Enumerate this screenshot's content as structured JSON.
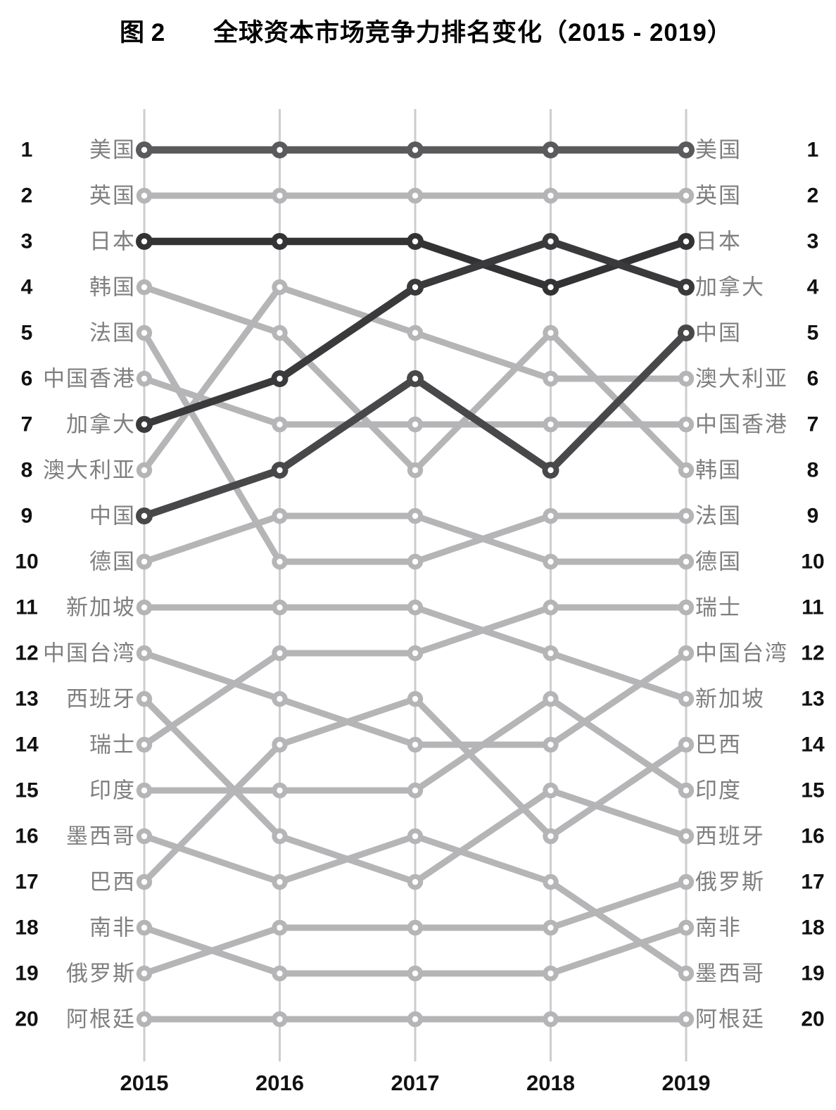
{
  "title": {
    "figure_label": "图 2",
    "text": "全球资本市场竞争力排名变化（2015 - 2019）"
  },
  "chart_data": {
    "type": "line",
    "subtype": "bump-ranking",
    "title": "全球资本市场竞争力排名变化（2015 - 2019）",
    "x": [
      "2015",
      "2016",
      "2017",
      "2018",
      "2019"
    ],
    "rank_axis": [
      1,
      2,
      3,
      4,
      5,
      6,
      7,
      8,
      9,
      10,
      11,
      12,
      13,
      14,
      15,
      16,
      17,
      18,
      19,
      20
    ],
    "ylim": [
      1,
      20
    ],
    "grid": "vertical-only",
    "legend_position": "none",
    "colors": {
      "default_line": "#b5b5b7",
      "grid": "#cdcdcf",
      "label_text": "#7f7f81",
      "rank_number": "#111111",
      "year_label": "#111111",
      "dot_hole": "#ffffff"
    },
    "series": [
      {
        "id": "usa",
        "name": "美国",
        "ranks": [
          1,
          1,
          1,
          1,
          1
        ],
        "color": "#5a5a5c",
        "emphasis": true
      },
      {
        "id": "uk",
        "name": "英国",
        "ranks": [
          2,
          2,
          2,
          2,
          2
        ],
        "color": "#b5b5b7",
        "emphasis": false
      },
      {
        "id": "japan",
        "name": "日本",
        "ranks": [
          3,
          3,
          3,
          4,
          3
        ],
        "color": "#333335",
        "emphasis": true
      },
      {
        "id": "korea",
        "name": "韩国",
        "ranks": [
          4,
          5,
          8,
          5,
          8
        ],
        "color": "#b5b5b7",
        "emphasis": false
      },
      {
        "id": "france",
        "name": "法国",
        "ranks": [
          5,
          10,
          10,
          9,
          9
        ],
        "color": "#b5b5b7",
        "emphasis": false
      },
      {
        "id": "hong-kong",
        "name": "中国香港",
        "ranks": [
          6,
          7,
          7,
          7,
          7
        ],
        "color": "#b5b5b7",
        "emphasis": false
      },
      {
        "id": "canada",
        "name": "加拿大",
        "ranks": [
          7,
          6,
          4,
          3,
          4
        ],
        "color": "#3a3a3c",
        "emphasis": true
      },
      {
        "id": "australia",
        "name": "澳大利亚",
        "ranks": [
          8,
          4,
          5,
          6,
          6
        ],
        "color": "#b5b5b7",
        "emphasis": false
      },
      {
        "id": "china",
        "name": "中国",
        "ranks": [
          9,
          8,
          6,
          8,
          5
        ],
        "color": "#48484a",
        "emphasis": true
      },
      {
        "id": "germany",
        "name": "德国",
        "ranks": [
          10,
          9,
          9,
          10,
          10
        ],
        "color": "#b5b5b7",
        "emphasis": false
      },
      {
        "id": "singapore",
        "name": "新加坡",
        "ranks": [
          11,
          11,
          11,
          12,
          13
        ],
        "color": "#b5b5b7",
        "emphasis": false
      },
      {
        "id": "taiwan",
        "name": "中国台湾",
        "ranks": [
          12,
          13,
          14,
          14,
          12
        ],
        "color": "#b5b5b7",
        "emphasis": false
      },
      {
        "id": "spain",
        "name": "西班牙",
        "ranks": [
          13,
          16,
          17,
          15,
          16
        ],
        "color": "#b5b5b7",
        "emphasis": false
      },
      {
        "id": "switzerland",
        "name": "瑞士",
        "ranks": [
          14,
          12,
          12,
          11,
          11
        ],
        "color": "#b5b5b7",
        "emphasis": false
      },
      {
        "id": "india",
        "name": "印度",
        "ranks": [
          15,
          15,
          15,
          13,
          15
        ],
        "color": "#b5b5b7",
        "emphasis": false
      },
      {
        "id": "mexico",
        "name": "墨西哥",
        "ranks": [
          16,
          17,
          16,
          17,
          19
        ],
        "color": "#b5b5b7",
        "emphasis": false
      },
      {
        "id": "brazil",
        "name": "巴西",
        "ranks": [
          17,
          14,
          13,
          16,
          14
        ],
        "color": "#b5b5b7",
        "emphasis": false
      },
      {
        "id": "south-africa",
        "name": "南非",
        "ranks": [
          18,
          19,
          19,
          19,
          18
        ],
        "color": "#b5b5b7",
        "emphasis": false
      },
      {
        "id": "russia",
        "name": "俄罗斯",
        "ranks": [
          19,
          18,
          18,
          18,
          17
        ],
        "color": "#b5b5b7",
        "emphasis": false
      },
      {
        "id": "argentina",
        "name": "阿根廷",
        "ranks": [
          20,
          20,
          20,
          20,
          20
        ],
        "color": "#b5b5b7",
        "emphasis": false
      }
    ]
  }
}
